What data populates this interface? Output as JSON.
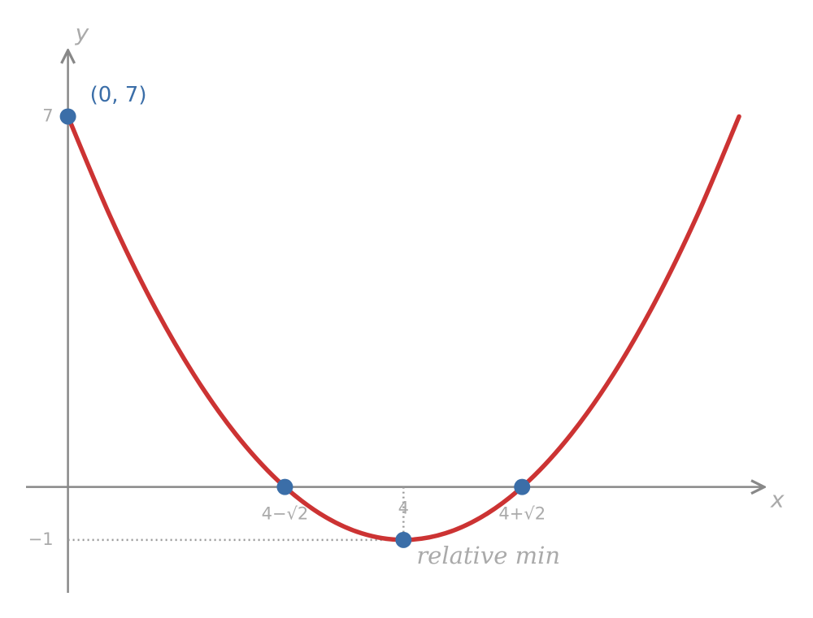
{
  "chart_data": {
    "type": "line",
    "x_label": "x",
    "y_label": "y",
    "x": [
      0,
      0.5,
      1,
      1.5,
      2,
      2.5,
      3,
      3.5,
      4,
      4.5,
      5,
      5.5,
      6,
      6.5,
      7,
      7.5,
      8
    ],
    "series": [
      {
        "color": "#cc3333",
        "values": [
          7,
          5.125,
          3.5,
          2.125,
          1,
          0.125,
          -0.5,
          -0.875,
          -1,
          -0.875,
          -0.5,
          0.125,
          1,
          2.125,
          3.5,
          5.125,
          7
        ]
      }
    ],
    "points": {
      "color": "#3b6ea8",
      "x": [
        0,
        2.586,
        4,
        5.414
      ],
      "y": [
        7,
        0,
        -1,
        0
      ]
    },
    "annotations": [
      "(0, 7)",
      "relative min"
    ],
    "xlim": [
      -0.5,
      8.3
    ],
    "ylim": [
      -2,
      8.25
    ],
    "xticks": [
      {
        "value": 2.586,
        "label": "4−√2"
      },
      4,
      {
        "value": 5.414,
        "label": "4+√2"
      }
    ],
    "yticks": [
      {
        "value": -1,
        "label": "−1"
      },
      7
    ],
    "axis_color": "#888888",
    "tick_color": "#aaaaaa"
  }
}
